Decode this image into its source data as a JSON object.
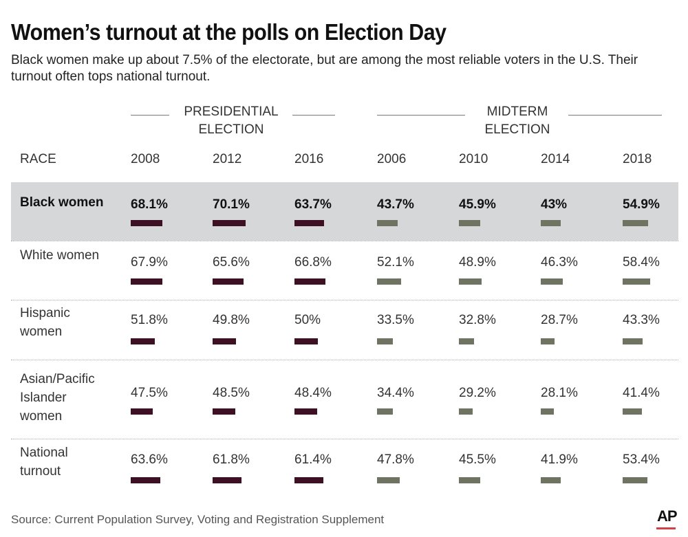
{
  "chart_data": {
    "type": "table",
    "title": "Women’s turnout at the polls on Election Day",
    "subtitle": "Black women make up about 7.5% of the electorate, but are among the most reliable voters in the U.S. Their turnout often tops national turnout.",
    "groups": [
      {
        "label": "PRESIDENTIAL ELECTION",
        "years": [
          "2008",
          "2012",
          "2016"
        ]
      },
      {
        "label": "MIDTERM ELECTION",
        "years": [
          "2006",
          "2010",
          "2014",
          "2018"
        ]
      }
    ],
    "row_header": "RACE",
    "columns": [
      "2008",
      "2012",
      "2016",
      "2006",
      "2010",
      "2014",
      "2018"
    ],
    "rows": [
      {
        "label": "Black women",
        "highlight": true,
        "values": [
          68.1,
          70.1,
          63.7,
          43.7,
          45.9,
          43,
          54.9
        ],
        "labels": [
          "68.1%",
          "70.1%",
          "63.7%",
          "43.7%",
          "45.9%",
          "43%",
          "54.9%"
        ]
      },
      {
        "label": "White women",
        "values": [
          67.9,
          65.6,
          66.8,
          52.1,
          48.9,
          46.3,
          58.4
        ],
        "labels": [
          "67.9%",
          "65.6%",
          "66.8%",
          "52.1%",
          "48.9%",
          "46.3%",
          "58.4%"
        ]
      },
      {
        "label": "Hispanic women",
        "values": [
          51.8,
          49.8,
          50,
          33.5,
          32.8,
          28.7,
          43.3
        ],
        "labels": [
          "51.8%",
          "49.8%",
          "50%",
          "33.5%",
          "32.8%",
          "28.7%",
          "43.3%"
        ]
      },
      {
        "label": "Asian/Pacific Islander women",
        "values": [
          47.5,
          48.5,
          48.4,
          34.4,
          29.2,
          28.1,
          41.4
        ],
        "labels": [
          "47.5%",
          "48.5%",
          "48.4%",
          "34.4%",
          "29.2%",
          "28.1%",
          "41.4%"
        ]
      },
      {
        "label": "National turnout",
        "values": [
          63.6,
          61.8,
          61.4,
          47.8,
          45.5,
          41.9,
          53.4
        ],
        "labels": [
          "63.6%",
          "61.8%",
          "61.4%",
          "47.8%",
          "45.5%",
          "41.9%",
          "53.4%"
        ]
      }
    ],
    "colors": {
      "presidential": "#3e1024",
      "midterm": "#6f7362",
      "highlight_band": "#d6d7d9"
    }
  },
  "source": "Source:  Current Population Survey, Voting and Registration Supplement",
  "logo": "AP"
}
